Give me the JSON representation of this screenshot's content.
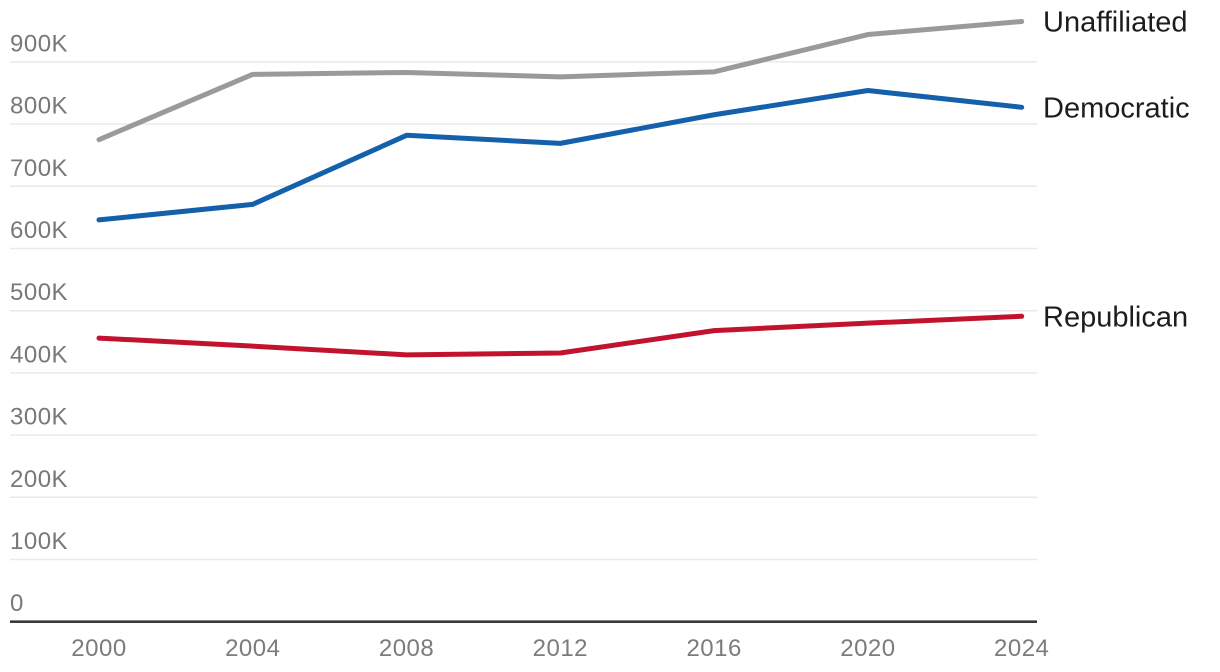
{
  "chart_data": {
    "type": "line",
    "title": "",
    "x": [
      2000,
      2004,
      2008,
      2012,
      2016,
      2020,
      2024
    ],
    "x_tick_labels": [
      "2000",
      "2004",
      "2008",
      "2012",
      "2016",
      "2020",
      "2024"
    ],
    "y_ticks": [
      0,
      100000,
      200000,
      300000,
      400000,
      500000,
      600000,
      700000,
      800000,
      900000
    ],
    "y_tick_labels": [
      "0",
      "100K",
      "200K",
      "300K",
      "400K",
      "500K",
      "600K",
      "700K",
      "800K",
      "900K"
    ],
    "ylim": [
      0,
      1000000
    ],
    "grid": true,
    "legend_position": "right-end-of-line-labels",
    "series": [
      {
        "name": "Unaffiliated",
        "color": "#9a9a9a",
        "values": [
          775000,
          880000,
          883000,
          876000,
          884000,
          944000,
          965000
        ]
      },
      {
        "name": "Democratic",
        "color": "#1460aa",
        "values": [
          646000,
          671000,
          782000,
          769000,
          815000,
          854000,
          827000
        ]
      },
      {
        "name": "Republican",
        "color": "#c1132e",
        "values": [
          456000,
          443000,
          429000,
          432000,
          468000,
          480000,
          491000
        ]
      }
    ]
  },
  "styles": {
    "background": "#ffffff",
    "gridline_color": "#e9e9e9",
    "axis_line_color": "#3a3a3a",
    "y_tick_label_color": "#787878",
    "x_tick_label_color": "#7c7c7c",
    "series_label_color": "#1d1d1d"
  }
}
